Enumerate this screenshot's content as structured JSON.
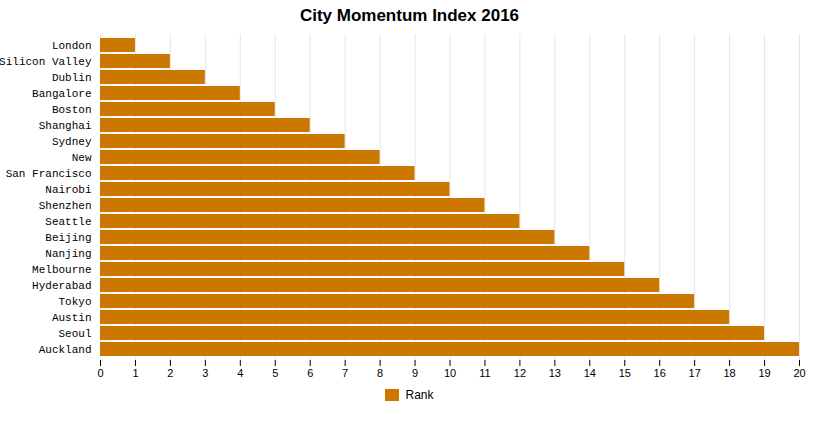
{
  "chart_data": {
    "type": "bar",
    "orientation": "horizontal",
    "title": "City Momentum Index 2016",
    "categories": [
      "London",
      "Silicon Valley",
      "Dublin",
      "Bangalore",
      "Boston",
      "Shanghai",
      "Sydney",
      "New",
      "San Francisco",
      "Nairobi",
      "Shenzhen",
      "Seattle",
      "Beijing",
      "Nanjing",
      "Melbourne",
      "Hyderabad",
      "Tokyo",
      "Austin",
      "Seoul",
      "Auckland"
    ],
    "series": [
      {
        "name": "Rank",
        "color": "#CC7700",
        "values": [
          1,
          2,
          3,
          4,
          5,
          6,
          7,
          8,
          9,
          10,
          11,
          12,
          13,
          14,
          15,
          16,
          17,
          18,
          19,
          20
        ]
      }
    ],
    "xlim": [
      0,
      20
    ],
    "xticks": [
      0,
      1,
      2,
      3,
      4,
      5,
      6,
      7,
      8,
      9,
      10,
      11,
      12,
      13,
      14,
      15,
      16,
      17,
      18,
      19,
      20
    ],
    "grid": true,
    "legend": "bottom"
  }
}
